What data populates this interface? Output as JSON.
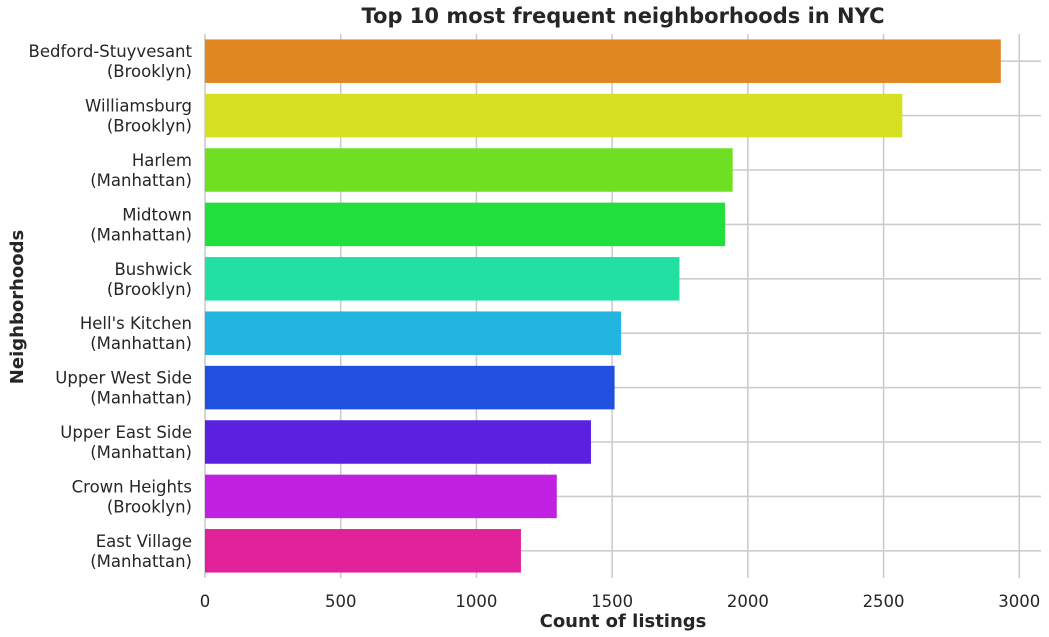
{
  "chart_data": {
    "type": "bar",
    "orientation": "horizontal",
    "title": "Top 10 most frequent neighborhoods in NYC",
    "xlabel": "Count of listings",
    "ylabel": "Neighborhoods",
    "xlim": [
      0,
      3080
    ],
    "xticks": [
      0,
      500,
      1000,
      1500,
      2000,
      2500,
      3000
    ],
    "grid": true,
    "categories": [
      [
        "Bedford-Stuyvesant",
        "(Brooklyn)"
      ],
      [
        "Williamsburg",
        "(Brooklyn)"
      ],
      [
        "Harlem",
        "(Manhattan)"
      ],
      [
        "Midtown",
        "(Manhattan)"
      ],
      [
        "Bushwick",
        "(Brooklyn)"
      ],
      [
        "Hell's Kitchen",
        "(Manhattan)"
      ],
      [
        "Upper West Side",
        "(Manhattan)"
      ],
      [
        "Upper East Side",
        "(Manhattan)"
      ],
      [
        "Crown Heights",
        "(Brooklyn)"
      ],
      [
        "East Village",
        "(Manhattan)"
      ]
    ],
    "values": [
      2932,
      2569,
      1944,
      1916,
      1748,
      1533,
      1509,
      1422,
      1296,
      1164
    ],
    "colors": [
      "#e08722",
      "#d4e021",
      "#6ee021",
      "#21e03e",
      "#21e0a2",
      "#21b5e0",
      "#2150e0",
      "#5b21e0",
      "#c021e0",
      "#e0219a"
    ]
  }
}
